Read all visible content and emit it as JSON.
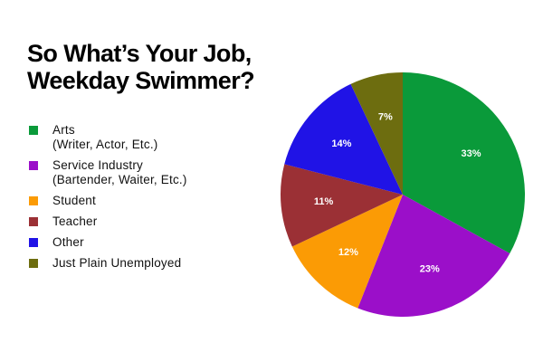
{
  "chart_data": {
    "type": "pie",
    "title": "So What’s Your Job, Weekday Swimmer?",
    "title_lines": [
      "So What’s Your Job,",
      "Weekday Swimmer?"
    ],
    "series": [
      {
        "name": "Arts",
        "name_lines": [
          "Arts",
          "(Writer, Actor, Etc.)"
        ],
        "value": 33,
        "label": "33%",
        "color": "#0a9a3a"
      },
      {
        "name": "Service Industry",
        "name_lines": [
          "Service Industry",
          "(Bartender, Waiter, Etc.)"
        ],
        "value": 23,
        "label": "23%",
        "color": "#9b0fc9"
      },
      {
        "name": "Student",
        "name_lines": [
          "Student"
        ],
        "value": 12,
        "label": "12%",
        "color": "#fb9b05"
      },
      {
        "name": "Teacher",
        "name_lines": [
          "Teacher"
        ],
        "value": 11,
        "label": "11%",
        "color": "#9b3035"
      },
      {
        "name": "Other",
        "name_lines": [
          "Other"
        ],
        "value": 14,
        "label": "14%",
        "color": "#2013e6"
      },
      {
        "name": "Just Plain Unemployed",
        "name_lines": [
          "Just Plain Unemployed"
        ],
        "value": 7,
        "label": "7%",
        "color": "#6d6d0f"
      }
    ],
    "start_angle": "12 o'clock, clockwise",
    "legend_position": "left"
  }
}
